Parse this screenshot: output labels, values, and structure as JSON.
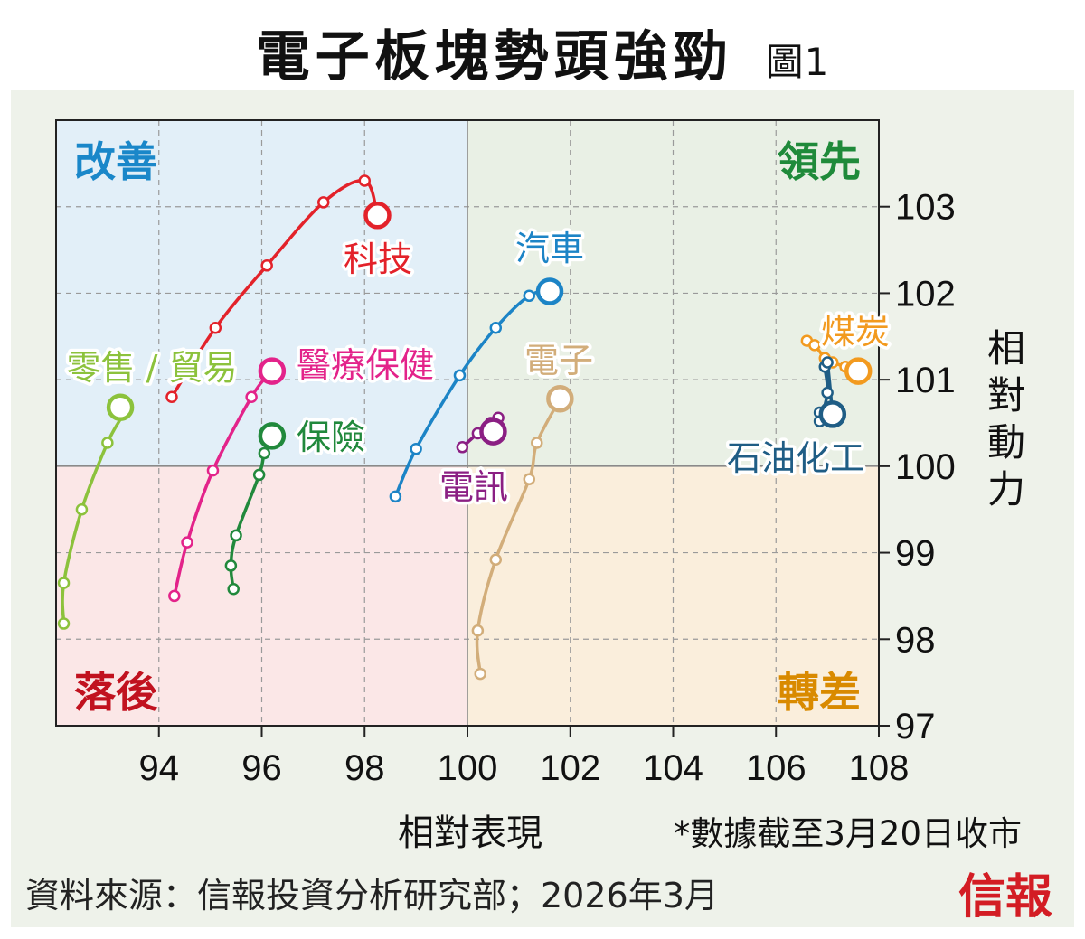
{
  "header": {
    "title": "電子板塊勢頭強勁",
    "figure_label": "圖1"
  },
  "footer": {
    "source": "資料來源：信報投資分析研究部；2026年3月",
    "note": "*數據截至3月20日收市",
    "brand": "信報"
  },
  "chart_data": {
    "type": "scatter",
    "title": "電子板塊勢頭強勁",
    "xlabel": "相對表現",
    "ylabel": "相對動力",
    "xlim": [
      92,
      108
    ],
    "ylim": [
      97,
      104
    ],
    "x_ticks": [
      94,
      96,
      98,
      100,
      102,
      104,
      106,
      108
    ],
    "y_ticks": [
      97,
      98,
      99,
      100,
      101,
      102,
      103
    ],
    "center": [
      100,
      100
    ],
    "grid": true,
    "quadrants": [
      {
        "label": "改善",
        "position": "top-left",
        "color": "#1a87c9",
        "fill": "#e2eff8"
      },
      {
        "label": "領先",
        "position": "top-right",
        "color": "#1f8a3a",
        "fill": "#e9f0e5"
      },
      {
        "label": "落後",
        "position": "bottom-left",
        "color": "#c1121f",
        "fill": "#fbe7e7"
      },
      {
        "label": "轉差",
        "position": "bottom-right",
        "color": "#d98a00",
        "fill": "#faeedc"
      }
    ],
    "series": [
      {
        "name": "科技",
        "color": "#e3222a",
        "x": [
          94.25,
          95.1,
          96.1,
          97.2,
          98.0,
          98.25
        ],
        "y": [
          100.8,
          101.6,
          102.32,
          103.05,
          103.3,
          102.9
        ]
      },
      {
        "name": "汽車",
        "color": "#1c84c6",
        "x": [
          98.6,
          99.0,
          99.85,
          100.55,
          101.2,
          101.6
        ],
        "y": [
          99.65,
          100.2,
          101.05,
          101.6,
          101.97,
          102.02
        ]
      },
      {
        "name": "零售 / 貿易",
        "color": "#8cc23c",
        "x": [
          92.15,
          92.15,
          92.5,
          93.0,
          93.3,
          93.25
        ],
        "y": [
          98.18,
          98.65,
          99.5,
          100.27,
          100.6,
          100.68
        ]
      },
      {
        "name": "醫療保健",
        "color": "#e3238a",
        "x": [
          94.3,
          94.55,
          95.05,
          95.8,
          96.15,
          96.2
        ],
        "y": [
          98.5,
          99.12,
          99.95,
          100.8,
          101.07,
          101.1
        ]
      },
      {
        "name": "保險",
        "color": "#21893c",
        "x": [
          95.45,
          95.4,
          95.5,
          95.95,
          96.05,
          96.2
        ],
        "y": [
          98.58,
          98.85,
          99.2,
          99.9,
          100.15,
          100.35
        ]
      },
      {
        "name": "電訊",
        "color": "#8b1f83",
        "x": [
          99.9,
          100.2,
          100.45,
          100.6,
          100.5,
          100.5
        ],
        "y": [
          100.22,
          100.38,
          100.5,
          100.56,
          100.5,
          100.4
        ]
      },
      {
        "name": "電子",
        "color": "#d2ad7a",
        "x": [
          100.25,
          100.2,
          100.55,
          101.2,
          101.35,
          101.8
        ],
        "y": [
          97.6,
          98.1,
          98.92,
          99.85,
          100.27,
          100.78
        ]
      },
      {
        "name": "煤炭",
        "color": "#f29a1f",
        "x": [
          106.6,
          106.75,
          106.95,
          107.1,
          107.35,
          107.6
        ],
        "y": [
          101.45,
          101.4,
          101.25,
          101.2,
          101.15,
          101.1
        ]
      },
      {
        "name": "石油化工",
        "color": "#1f5d85",
        "x": [
          106.85,
          106.85,
          107.0,
          106.95,
          107.0,
          107.1
        ],
        "y": [
          100.62,
          100.52,
          100.85,
          101.15,
          101.2,
          100.6
        ]
      }
    ]
  }
}
